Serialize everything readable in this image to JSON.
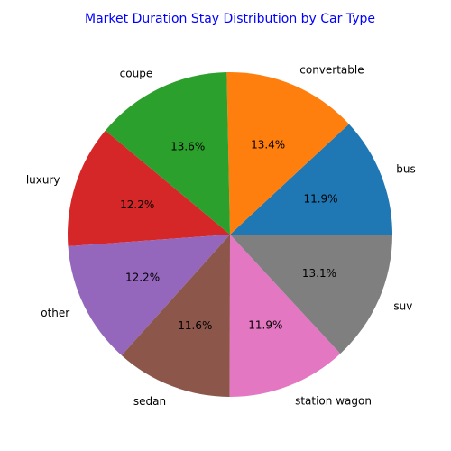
{
  "chart_data": {
    "type": "pie",
    "title": "Market Duration Stay Distribution by Car Type",
    "title_color": "#0000ff",
    "categories": [
      "bus",
      "convertable",
      "coupe",
      "luxury",
      "other",
      "sedan",
      "station wagon",
      "suv"
    ],
    "values": [
      11.9,
      13.4,
      13.6,
      12.2,
      12.2,
      11.6,
      11.9,
      13.1
    ],
    "value_labels": [
      "11.9%",
      "13.4%",
      "13.6%",
      "12.2%",
      "12.2%",
      "11.6%",
      "11.9%",
      "13.1%"
    ],
    "colors": [
      "#1f77b4",
      "#ff7f0e",
      "#2ca02c",
      "#d62728",
      "#9467bd",
      "#8c564b",
      "#e377c2",
      "#7f7f7f"
    ],
    "start_angle_deg": 0,
    "direction": "counterclockwise",
    "legend": "none"
  }
}
